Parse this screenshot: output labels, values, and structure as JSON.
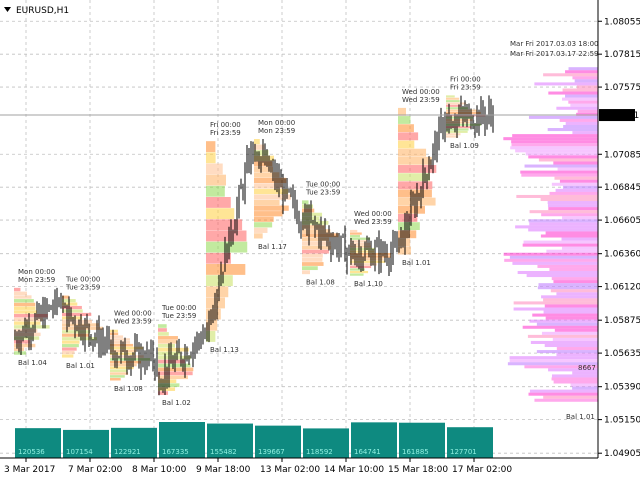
{
  "symbol": "EURUSD,H1",
  "colors": {
    "bg": "#ffffff",
    "grid": "#c0c0c0",
    "candle": "#000000",
    "volume": "#0e8a80",
    "current_price_bg": "#000000",
    "bal_red": "#c02020",
    "bal_green": "#208040"
  },
  "chart_data": {
    "type": "candlestick",
    "title": "EURUSD,H1",
    "ylim": [
      1.0487,
      1.0821
    ],
    "y_ticks": [
      "1.08055",
      "1.07815",
      "1.07575",
      "1.07371",
      "1.07085",
      "1.06845",
      "1.06605",
      "1.06360",
      "1.06120",
      "1.05875",
      "1.05635",
      "1.05390",
      "1.05150",
      "1.04905"
    ],
    "x_ticks": [
      "3 Mar 2017",
      "7 Mar 02:00",
      "8 Mar 10:00",
      "9 Mar 18:00",
      "13 Mar 02:00",
      "14 Mar 10:00",
      "15 Mar 18:00",
      "17 Mar 02:00"
    ],
    "current_price": "1.07371",
    "sessions": [
      {
        "top": "Mon 00:00",
        "bottom": "Mon 23:59",
        "bal": "Bal 1.04",
        "bal_color": "red",
        "volume": "120536",
        "y_open": 1.0574,
        "y_close": 1.0602
      },
      {
        "top": "Tue 00:00",
        "bottom": "Tue 23:59",
        "bal": "Bal 1.01",
        "bal_color": "green",
        "volume": "107154",
        "y_open": 1.0595,
        "y_close": 1.0568
      },
      {
        "top": "Wed 00:00",
        "bottom": "Wed 23:59",
        "bal": "Bal 1.08",
        "bal_color": "red",
        "volume": "122921",
        "y_open": 1.0566,
        "y_close": 1.0558
      },
      {
        "top": "Tue 00:00",
        "bottom": "Tue 23:59",
        "bal": "Bal 1.02",
        "bal_color": "red",
        "volume": "167335",
        "y_open": 1.0545,
        "y_close": 1.0578
      },
      {
        "top": "Fri 00:00",
        "bottom": "Fri 23:59",
        "bal": "Bal 1.13",
        "bal_color": "green",
        "volume": "155482",
        "y_open": 1.0578,
        "y_close": 1.0715
      },
      {
        "top": "Mon 00:00",
        "bottom": "Mon 23:59",
        "bal": "Bal 1.17",
        "bal_color": "red",
        "volume": "139667",
        "y_open": 1.0715,
        "y_close": 1.0662
      },
      {
        "top": "Tue 00:00",
        "bottom": "Tue 23:59",
        "bal": "Bal 1.08",
        "bal_color": "red",
        "volume": "118592",
        "y_open": 1.0662,
        "y_close": 1.0637
      },
      {
        "top": "Wed 00:00",
        "bottom": "Wed 23:59",
        "bal": "Bal 1.10",
        "bal_color": "green",
        "volume": "164741",
        "y_open": 1.0637,
        "y_close": 1.0637
      },
      {
        "top": "Wed 00:00",
        "bottom": "Wed 23:59",
        "bal": "Bal 1.01",
        "bal_color": "green",
        "volume": "161885",
        "y_open": 1.0637,
        "y_close": 1.0735
      },
      {
        "top": "Fri 00:00",
        "bottom": "Fri 23:59",
        "bal": "Bal 1.09",
        "bal_color": "red",
        "volume": "127701",
        "y_open": 1.0735,
        "y_close": 1.0737
      }
    ],
    "summary": {
      "top": "Mar Fri 2017.03.03 18:00",
      "bottom": "Mar Fri 2017.03.17 22:59",
      "bal": "Bal 1.01",
      "poc_volume": "8667"
    }
  }
}
